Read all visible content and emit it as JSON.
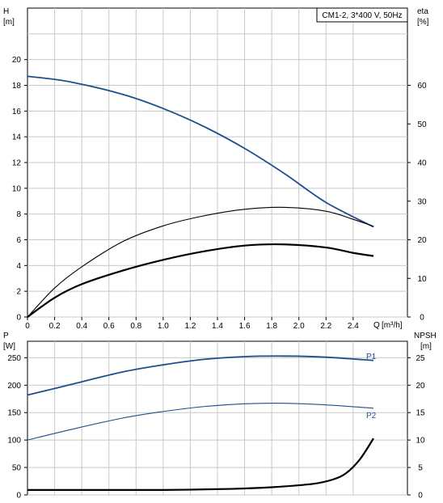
{
  "colors": {
    "blue": "#1e4f8c",
    "black": "#000000",
    "grid": "#c8c8c8"
  },
  "chart_data": [
    {
      "type": "line",
      "title": "CM1-2, 3*400 V, 50Hz",
      "xlabel": "Q",
      "xunit": "[m³/h]",
      "ylabel": "H",
      "yunit": "[m]",
      "y2label": "eta",
      "y2unit": "[%]",
      "xlim": [
        0,
        2.8
      ],
      "ylim": [
        0,
        24
      ],
      "y2lim": [
        0,
        80
      ],
      "grid": true,
      "x_ticks": [
        "0",
        "0.2",
        "0.4",
        "0.6",
        "0.8",
        "1.0",
        "1.2",
        "1.4",
        "1.6",
        "1.8",
        "2.0",
        "2.2",
        "2.4"
      ],
      "y_ticks": [
        "0",
        "2",
        "4",
        "6",
        "8",
        "10",
        "12",
        "14",
        "16",
        "18",
        "20"
      ],
      "y2_ticks": [
        "0",
        "10",
        "20",
        "30",
        "40",
        "50",
        "60"
      ],
      "series": [
        {
          "key": "head",
          "axis": "y",
          "color": "#1e4f8c",
          "x": [
            0,
            0.3,
            0.7,
            1.0,
            1.3,
            1.6,
            1.9,
            2.2,
            2.55
          ],
          "y": [
            18.7,
            18.3,
            17.3,
            16.2,
            14.8,
            13.1,
            11.1,
            8.9,
            7.0
          ]
        },
        {
          "key": "eta-total",
          "axis": "y2",
          "color": "#000000",
          "x": [
            0,
            0.2,
            0.4,
            0.7,
            1.0,
            1.3,
            1.6,
            1.9,
            2.2,
            2.4,
            2.55
          ],
          "y": [
            0,
            7.5,
            13,
            19.5,
            23.6,
            26.2,
            27.9,
            28.4,
            27.4,
            25.3,
            23.5
          ]
        },
        {
          "key": "eta-pump",
          "axis": "y2",
          "color": "#000000",
          "x": [
            0,
            0.2,
            0.4,
            0.7,
            1.0,
            1.3,
            1.6,
            1.9,
            2.2,
            2.4,
            2.55
          ],
          "y": [
            0,
            5,
            8.5,
            12,
            14.8,
            17,
            18.5,
            18.8,
            18,
            16.6,
            15.8
          ]
        }
      ]
    },
    {
      "type": "line",
      "xlim": [
        0,
        2.8
      ],
      "ylabel": "P",
      "yunit": "[W]",
      "y2label": "NPSH",
      "y2unit": "[m]",
      "ylim": [
        0,
        280
      ],
      "y2lim": [
        0,
        28
      ],
      "grid": true,
      "y_ticks": [
        "0",
        "50",
        "100",
        "150",
        "200",
        "250"
      ],
      "y2_ticks": [
        "0",
        "5",
        "10",
        "15",
        "20",
        "25"
      ],
      "series": [
        {
          "key": "P1",
          "name": "P1",
          "axis": "y",
          "color": "#1e4f8c",
          "x": [
            0,
            0.3,
            0.7,
            1.0,
            1.3,
            1.6,
            1.9,
            2.2,
            2.55
          ],
          "y": [
            182,
            200,
            224,
            237,
            247,
            252,
            253,
            251,
            245
          ]
        },
        {
          "key": "P2",
          "name": "P2",
          "axis": "y",
          "color": "#1e4f8c",
          "x": [
            0,
            0.3,
            0.7,
            1.0,
            1.3,
            1.6,
            1.9,
            2.2,
            2.55
          ],
          "y": [
            100,
            118,
            140,
            152,
            161,
            166,
            167,
            164,
            158
          ]
        },
        {
          "key": "npsh",
          "axis": "y2",
          "color": "#000000",
          "x": [
            0,
            0.5,
            1.0,
            1.5,
            1.8,
            2.1,
            2.25,
            2.35,
            2.45,
            2.55
          ],
          "y": [
            0.9,
            0.9,
            0.9,
            1.1,
            1.4,
            2.0,
            2.8,
            4.0,
            6.5,
            10.3
          ]
        }
      ]
    }
  ]
}
